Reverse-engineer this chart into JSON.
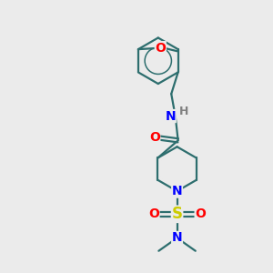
{
  "background_color": "#ebebeb",
  "bond_color": "#2d6e6e",
  "atom_colors": {
    "N": "#0000ff",
    "O": "#ff0000",
    "S": "#cccc00",
    "H": "#808080"
  },
  "bond_lw": 1.6,
  "font_size_atoms": 10,
  "font_size_small": 8.5
}
